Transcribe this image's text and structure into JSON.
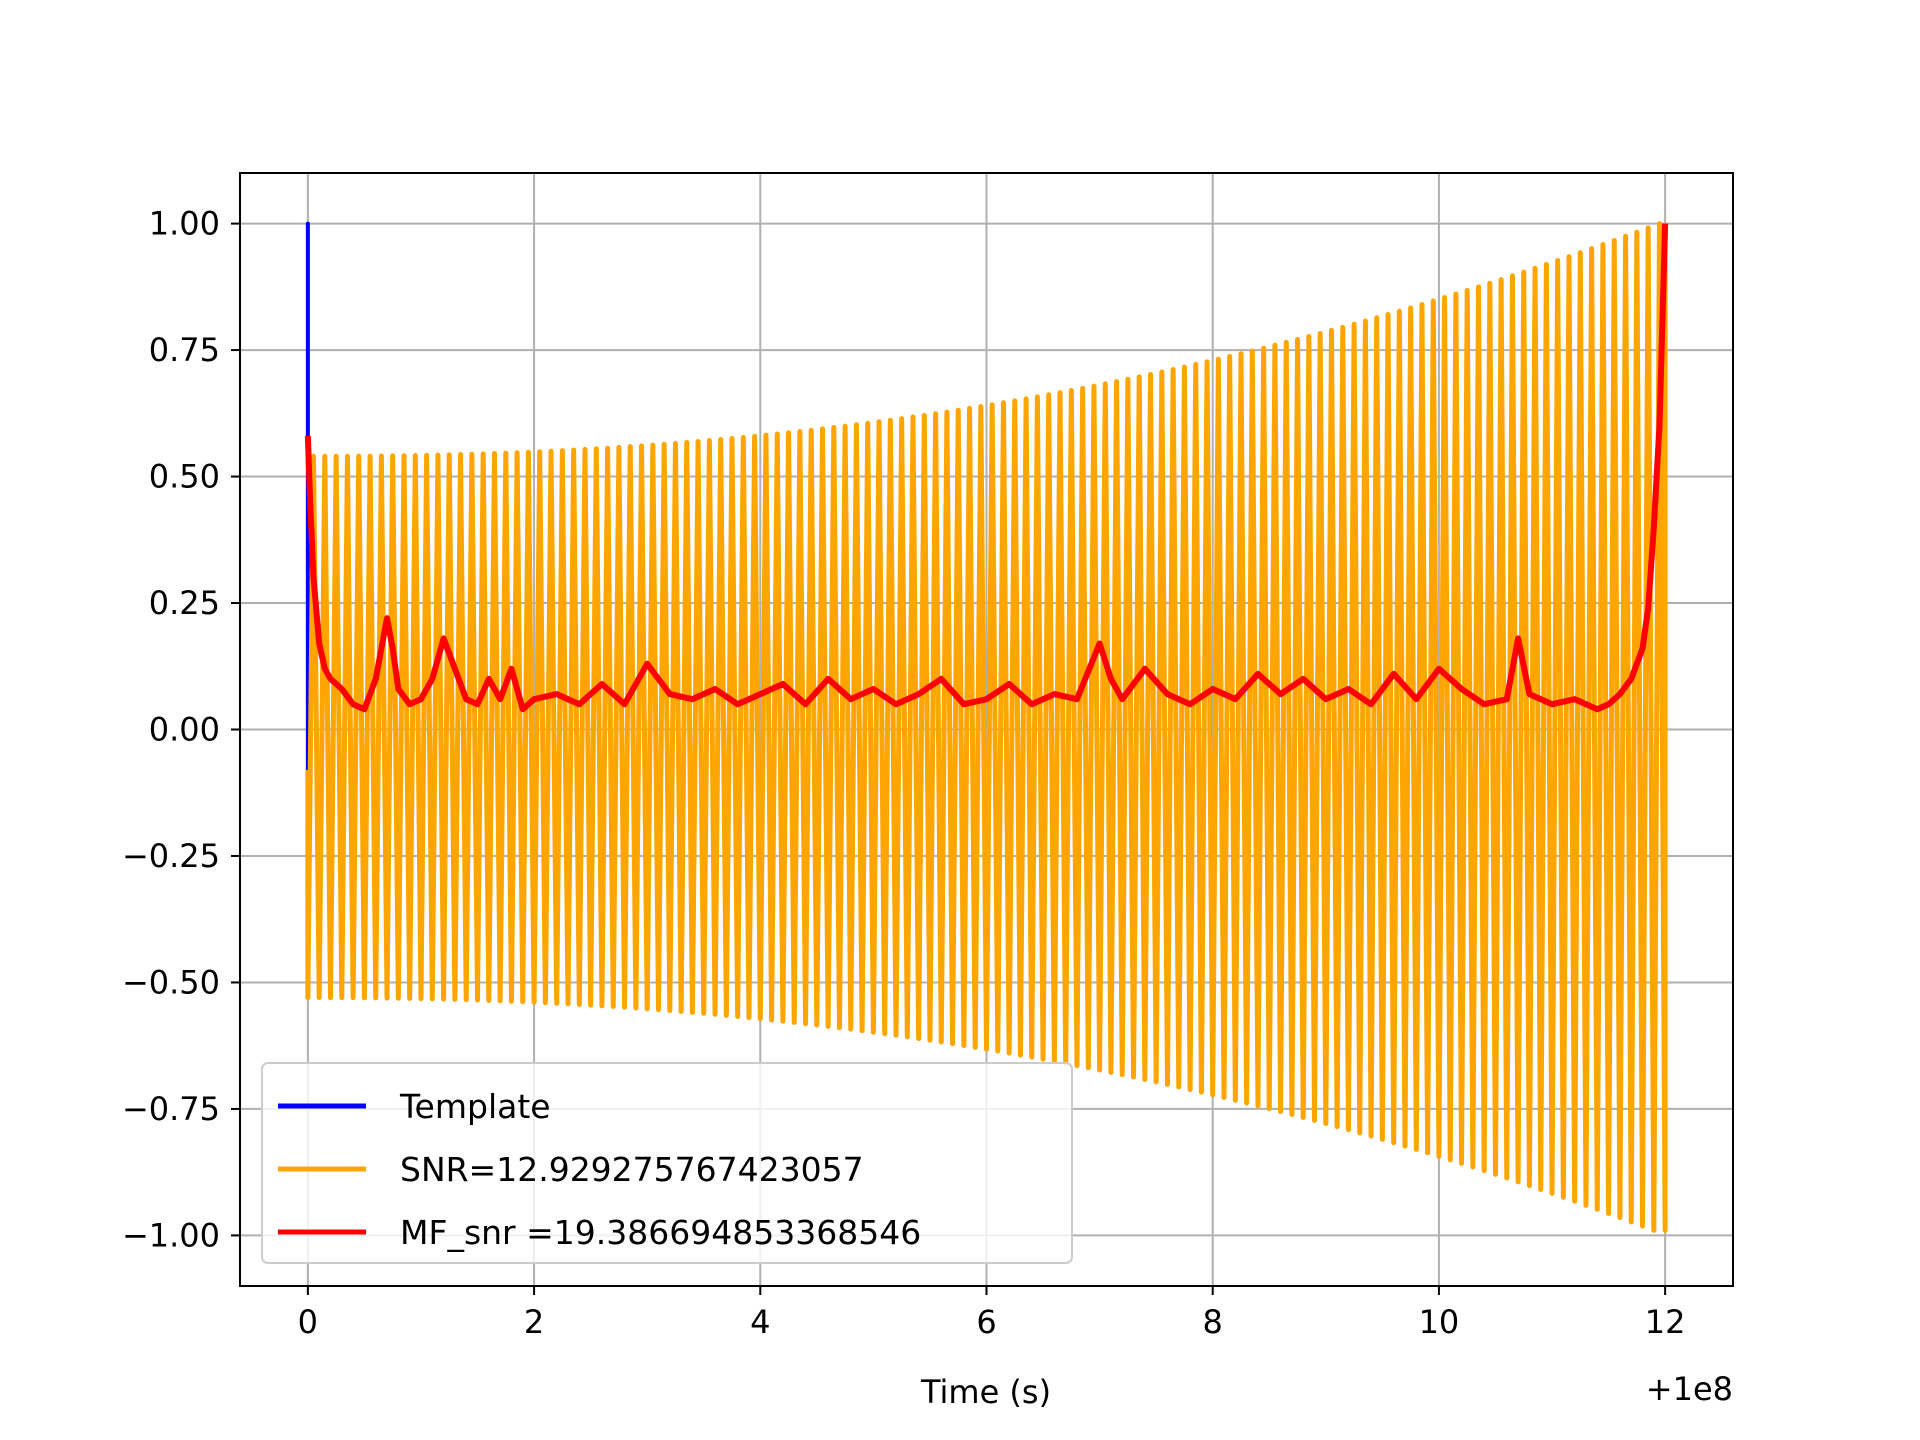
{
  "chart_data": {
    "type": "line",
    "title": "",
    "xlabel": "Time (s)",
    "ylabel": "",
    "x_offset_label": "+1e8",
    "xlim": [
      -0.6,
      12.6
    ],
    "ylim": [
      -1.1,
      1.1
    ],
    "x_ticks": [
      0,
      2,
      4,
      6,
      8,
      10,
      12
    ],
    "x_tick_labels": [
      "0",
      "2",
      "4",
      "6",
      "8",
      "10",
      "12"
    ],
    "y_ticks": [
      1.0,
      0.75,
      0.5,
      0.25,
      0.0,
      -0.25,
      -0.5,
      -0.75,
      -1.0
    ],
    "y_tick_labels": [
      "1.00",
      "0.75",
      "0.50",
      "0.25",
      "0.00",
      "−0.25",
      "−0.50",
      "−0.75",
      "−1.00"
    ],
    "grid": true,
    "legend_position": "lower-left",
    "colors": {
      "template": "#0000ff",
      "snr": "#ffa500",
      "mf_snr": "#ff0000",
      "grid": "#b0b0b0",
      "axes": "#000000"
    },
    "series": [
      {
        "name": "Template",
        "kind": "impulse",
        "x": [
          0,
          0,
          0
        ],
        "y": [
          -0.08,
          1.0,
          -0.08
        ]
      },
      {
        "name": "SNR=12.929275767423057",
        "kind": "chirp",
        "x_start": 0.0,
        "x_end": 12.0,
        "cycles": 120,
        "amp_start_top": 0.54,
        "amp_end_top": 1.0,
        "amp_start_bottom": -0.53,
        "amp_end_bottom": -0.99,
        "y_first": -0.08
      },
      {
        "name": "MF_snr =19.386694853368546",
        "kind": "line",
        "x": [
          0,
          0.02,
          0.05,
          0.1,
          0.15,
          0.2,
          0.3,
          0.4,
          0.5,
          0.6,
          0.7,
          0.75,
          0.8,
          0.9,
          1.0,
          1.1,
          1.2,
          1.3,
          1.4,
          1.5,
          1.6,
          1.7,
          1.8,
          1.9,
          2.0,
          2.2,
          2.4,
          2.6,
          2.8,
          3.0,
          3.2,
          3.4,
          3.6,
          3.8,
          4.0,
          4.2,
          4.4,
          4.6,
          4.8,
          5.0,
          5.2,
          5.4,
          5.6,
          5.8,
          6.0,
          6.2,
          6.4,
          6.6,
          6.8,
          7.0,
          7.1,
          7.2,
          7.4,
          7.6,
          7.8,
          8.0,
          8.2,
          8.4,
          8.6,
          8.8,
          9.0,
          9.2,
          9.4,
          9.6,
          9.8,
          10.0,
          10.2,
          10.4,
          10.6,
          10.7,
          10.8,
          11.0,
          11.2,
          11.4,
          11.5,
          11.6,
          11.7,
          11.8,
          11.85,
          11.9,
          11.95,
          12.0
        ],
        "y": [
          0.58,
          0.45,
          0.3,
          0.17,
          0.12,
          0.1,
          0.08,
          0.05,
          0.04,
          0.1,
          0.22,
          0.16,
          0.08,
          0.05,
          0.06,
          0.1,
          0.18,
          0.12,
          0.06,
          0.05,
          0.1,
          0.06,
          0.12,
          0.04,
          0.06,
          0.07,
          0.05,
          0.09,
          0.05,
          0.13,
          0.07,
          0.06,
          0.08,
          0.05,
          0.07,
          0.09,
          0.05,
          0.1,
          0.06,
          0.08,
          0.05,
          0.07,
          0.1,
          0.05,
          0.06,
          0.09,
          0.05,
          0.07,
          0.06,
          0.17,
          0.1,
          0.06,
          0.12,
          0.07,
          0.05,
          0.08,
          0.06,
          0.11,
          0.07,
          0.1,
          0.06,
          0.08,
          0.05,
          0.11,
          0.06,
          0.12,
          0.08,
          0.05,
          0.06,
          0.18,
          0.07,
          0.05,
          0.06,
          0.04,
          0.05,
          0.07,
          0.1,
          0.16,
          0.24,
          0.4,
          0.6,
          1.0
        ]
      }
    ]
  }
}
